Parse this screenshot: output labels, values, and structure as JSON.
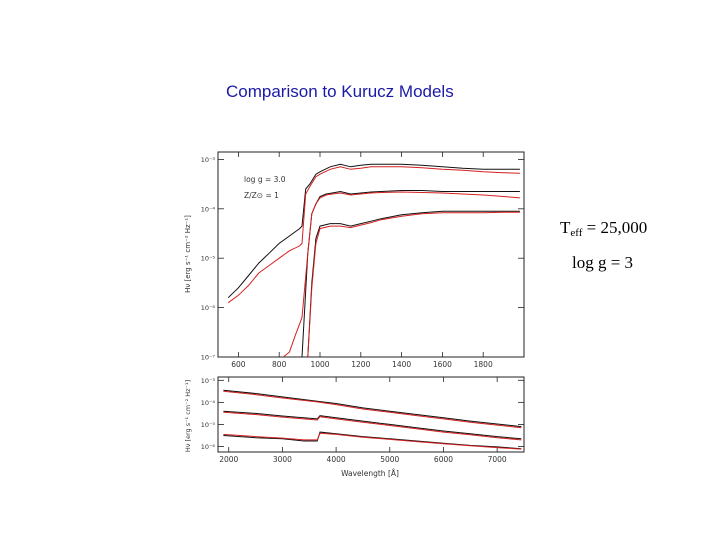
{
  "slide": {
    "title": "Comparison to Kurucz Models",
    "teff_label": "T",
    "teff_sub": "eff",
    "teff_value": " = 25,000",
    "logg_label": "log g = 3"
  },
  "chart_data": [
    {
      "type": "line",
      "panel": "top",
      "xlim": [
        500,
        2000
      ],
      "x_ticks": [
        "600",
        "800",
        "1000",
        "1200",
        "1400",
        "1600",
        "1800"
      ],
      "x_tick_values": [
        600,
        800,
        1000,
        1200,
        1400,
        1600,
        1800
      ],
      "y_scale": "log",
      "ylim_exp": [
        -7,
        -2.85
      ],
      "y_ticks": [
        "10⁻³",
        "10⁻⁴",
        "10⁻⁵",
        "10⁻⁶",
        "10⁻⁷"
      ],
      "y_tick_exps": [
        -3,
        -4,
        -5,
        -6,
        -7
      ],
      "ylabel": "Hν [erg s⁻¹ cm⁻² Hz⁻¹]",
      "annotations": [
        "log g = 3.0",
        "Z/Z⊙ = 1"
      ],
      "colors": {
        "model_black": "#111111",
        "model_red": "#d42020"
      },
      "series": [
        {
          "color": "black",
          "x": [
            550,
            600,
            650,
            700,
            750,
            800,
            850,
            900,
            912,
            930,
            950,
            980,
            1000,
            1050,
            1100,
            1150,
            1200,
            1250,
            1300,
            1400,
            1500,
            1600,
            1700,
            1800,
            1900,
            1980
          ],
          "y": [
            -5.8,
            -5.6,
            -5.35,
            -5.1,
            -4.9,
            -4.7,
            -4.55,
            -4.4,
            -4.35,
            -3.6,
            -3.5,
            -3.3,
            -3.25,
            -3.15,
            -3.1,
            -3.15,
            -3.12,
            -3.1,
            -3.1,
            -3.1,
            -3.12,
            -3.15,
            -3.18,
            -3.2,
            -3.2,
            -3.2
          ]
        },
        {
          "color": "red",
          "x": [
            550,
            600,
            650,
            700,
            750,
            800,
            850,
            900,
            912,
            930,
            950,
            980,
            1000,
            1050,
            1100,
            1150,
            1200,
            1250,
            1300,
            1400,
            1500,
            1600,
            1700,
            1800,
            1900,
            1980
          ],
          "y": [
            -5.9,
            -5.75,
            -5.55,
            -5.3,
            -5.15,
            -5.0,
            -4.85,
            -4.75,
            -4.7,
            -3.7,
            -3.55,
            -3.35,
            -3.3,
            -3.2,
            -3.15,
            -3.2,
            -3.18,
            -3.15,
            -3.15,
            -3.15,
            -3.17,
            -3.2,
            -3.22,
            -3.25,
            -3.27,
            -3.28
          ]
        },
        {
          "color": "black",
          "x": [
            912,
            940,
            960,
            980,
            1000,
            1030,
            1060,
            1100,
            1150,
            1200,
            1250,
            1300,
            1400,
            1500,
            1600,
            1700,
            1800,
            1900,
            1980
          ],
          "y": [
            -7.2,
            -4.9,
            -4.1,
            -3.9,
            -3.75,
            -3.7,
            -3.68,
            -3.65,
            -3.7,
            -3.68,
            -3.66,
            -3.65,
            -3.63,
            -3.63,
            -3.65,
            -3.65,
            -3.65,
            -3.65,
            -3.65
          ]
        },
        {
          "color": "red",
          "x": [
            820,
            850,
            880,
            912,
            940,
            960,
            980,
            1000,
            1030,
            1060,
            1100,
            1150,
            1200,
            1250,
            1300,
            1400,
            1500,
            1600,
            1700,
            1800,
            1900,
            1980
          ],
          "y": [
            -7.2,
            -6.9,
            -6.55,
            -6.2,
            -4.9,
            -4.1,
            -3.9,
            -3.78,
            -3.72,
            -3.7,
            -3.68,
            -3.72,
            -3.7,
            -3.68,
            -3.67,
            -3.66,
            -3.67,
            -3.68,
            -3.7,
            -3.72,
            -3.75,
            -3.78
          ]
        },
        {
          "color": "black",
          "x": [
            940,
            960,
            980,
            1000,
            1050,
            1100,
            1150,
            1200,
            1250,
            1300,
            1400,
            1500,
            1600,
            1700,
            1800,
            1900,
            1980
          ],
          "y": [
            -7.2,
            -5.5,
            -4.6,
            -4.35,
            -4.3,
            -4.3,
            -4.35,
            -4.3,
            -4.25,
            -4.2,
            -4.12,
            -4.08,
            -4.05,
            -4.05,
            -4.05,
            -4.05,
            -4.05
          ]
        },
        {
          "color": "red",
          "x": [
            940,
            960,
            980,
            1000,
            1050,
            1100,
            1150,
            1200,
            1250,
            1300,
            1400,
            1500,
            1600,
            1700,
            1800,
            1900,
            1980
          ],
          "y": [
            -7.2,
            -5.6,
            -4.7,
            -4.4,
            -4.35,
            -4.35,
            -4.38,
            -4.33,
            -4.28,
            -4.22,
            -4.15,
            -4.1,
            -4.08,
            -4.08,
            -4.08,
            -4.07,
            -4.07
          ]
        }
      ]
    },
    {
      "type": "line",
      "panel": "bottom",
      "xlim": [
        1800,
        7500
      ],
      "x_ticks": [
        "2000",
        "3000",
        "4000",
        "5000",
        "6000",
        "7000"
      ],
      "x_tick_values": [
        2000,
        3000,
        4000,
        5000,
        6000,
        7000
      ],
      "xlabel": "Wavelength [Å]",
      "y_scale": "log",
      "ylim_exp": [
        -6.25,
        -2.85
      ],
      "y_ticks": [
        "10⁻³",
        "10⁻⁴",
        "10⁻⁵",
        "10⁻⁶"
      ],
      "y_tick_exps": [
        -3,
        -4,
        -5,
        -6
      ],
      "ylabel": "Hν [erg s⁻¹ cm⁻² Hz⁻¹]",
      "series": [
        {
          "color": "black",
          "x": [
            1900,
            2500,
            3000,
            3647,
            4000,
            4500,
            5000,
            5500,
            6000,
            6500,
            7000,
            7450
          ],
          "y": [
            -3.45,
            -3.6,
            -3.75,
            -3.95,
            -4.05,
            -4.25,
            -4.4,
            -4.55,
            -4.7,
            -4.85,
            -4.98,
            -5.1
          ]
        },
        {
          "color": "red",
          "x": [
            1900,
            2500,
            3000,
            3647,
            4000,
            4500,
            5000,
            5500,
            6000,
            6500,
            7000,
            7450
          ],
          "y": [
            -3.5,
            -3.65,
            -3.8,
            -3.98,
            -4.1,
            -4.3,
            -4.45,
            -4.6,
            -4.75,
            -4.9,
            -5.03,
            -5.15
          ]
        },
        {
          "color": "black",
          "x": [
            1900,
            2500,
            3000,
            3647,
            3700,
            4000,
            4500,
            5000,
            5500,
            6000,
            6500,
            7000,
            7450
          ],
          "y": [
            -4.4,
            -4.5,
            -4.62,
            -4.75,
            -4.6,
            -4.7,
            -4.85,
            -5.0,
            -5.15,
            -5.3,
            -5.42,
            -5.55,
            -5.65
          ]
        },
        {
          "color": "red",
          "x": [
            1900,
            2500,
            3000,
            3647,
            3700,
            4000,
            4500,
            5000,
            5500,
            6000,
            6500,
            7000,
            7450
          ],
          "y": [
            -4.45,
            -4.55,
            -4.67,
            -4.8,
            -4.65,
            -4.75,
            -4.9,
            -5.05,
            -5.2,
            -5.35,
            -5.47,
            -5.6,
            -5.7
          ]
        },
        {
          "color": "black",
          "x": [
            1900,
            2500,
            3000,
            3400,
            3647,
            3700,
            4000,
            4500,
            5000,
            5500,
            6000,
            6500,
            7000,
            7450
          ],
          "y": [
            -5.5,
            -5.6,
            -5.65,
            -5.75,
            -5.75,
            -5.35,
            -5.42,
            -5.55,
            -5.65,
            -5.75,
            -5.85,
            -5.95,
            -6.02,
            -6.1
          ]
        },
        {
          "color": "red",
          "x": [
            1900,
            2500,
            3000,
            3400,
            3647,
            3700,
            4000,
            4500,
            5000,
            5500,
            6000,
            6500,
            7000,
            7450
          ],
          "y": [
            -5.45,
            -5.55,
            -5.62,
            -5.7,
            -5.7,
            -5.4,
            -5.45,
            -5.58,
            -5.68,
            -5.78,
            -5.88,
            -5.97,
            -6.05,
            -6.12
          ]
        }
      ]
    }
  ]
}
